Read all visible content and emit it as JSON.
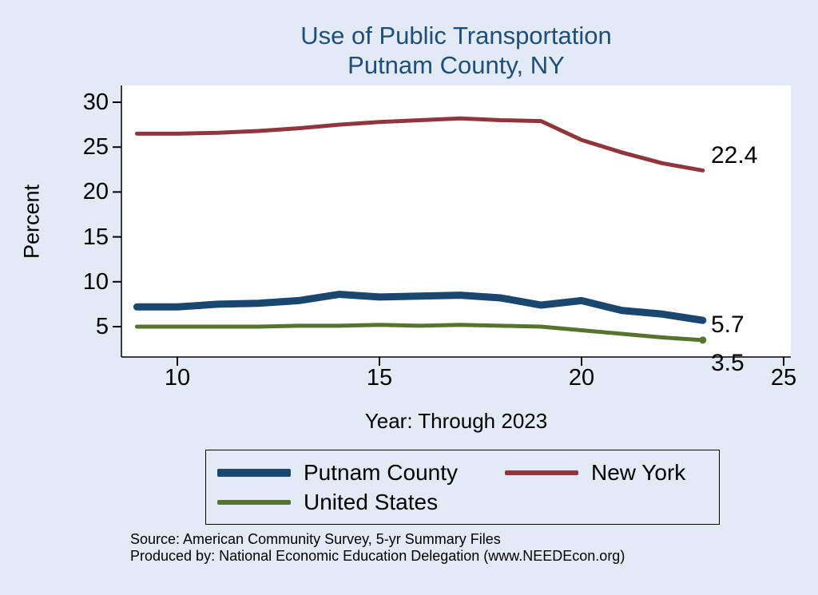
{
  "page": {
    "title_color": "#1f4e79",
    "background": "#e2eaf5"
  },
  "chart_data": {
    "type": "line",
    "title": "Use of Public Transportation",
    "subtitle": "Putnam County, NY",
    "xlabel": "Year: Through 2023",
    "ylabel": "Percent",
    "xlim": [
      8.6,
      25.2
    ],
    "ylim": [
      1.6,
      31.9
    ],
    "xticks": [
      10,
      15,
      20,
      25
    ],
    "yticks": [
      5,
      10,
      15,
      20,
      25,
      30
    ],
    "grid": false,
    "legend_position": "bottom",
    "x": [
      9,
      10,
      11,
      12,
      13,
      14,
      15,
      16,
      17,
      18,
      19,
      20,
      21,
      22,
      23
    ],
    "series": [
      {
        "name": "Putnam County",
        "color": "#1a476f",
        "values": [
          7.2,
          7.2,
          7.5,
          7.6,
          7.9,
          8.6,
          8.3,
          8.4,
          8.5,
          8.2,
          7.4,
          7.9,
          6.8,
          6.4,
          5.7
        ],
        "end_label": "5.7"
      },
      {
        "name": "New York",
        "color": "#90353b",
        "values": [
          26.5,
          26.5,
          26.6,
          26.8,
          27.1,
          27.5,
          27.8,
          28.0,
          28.2,
          28.0,
          27.9,
          25.8,
          24.4,
          23.2,
          22.4
        ],
        "end_label": "22.4"
      },
      {
        "name": "United States",
        "color": "#55752f",
        "values": [
          5.0,
          5.0,
          5.0,
          5.0,
          5.1,
          5.1,
          5.2,
          5.1,
          5.2,
          5.1,
          5.0,
          4.6,
          4.2,
          3.8,
          3.5
        ],
        "end_label": "3.5"
      }
    ]
  },
  "footer": {
    "source_line": "Source: American Community Survey, 5-yr Summary Files",
    "produced_line": "Produced by: National Economic Education Delegation (www.NEEDEcon.org)"
  }
}
